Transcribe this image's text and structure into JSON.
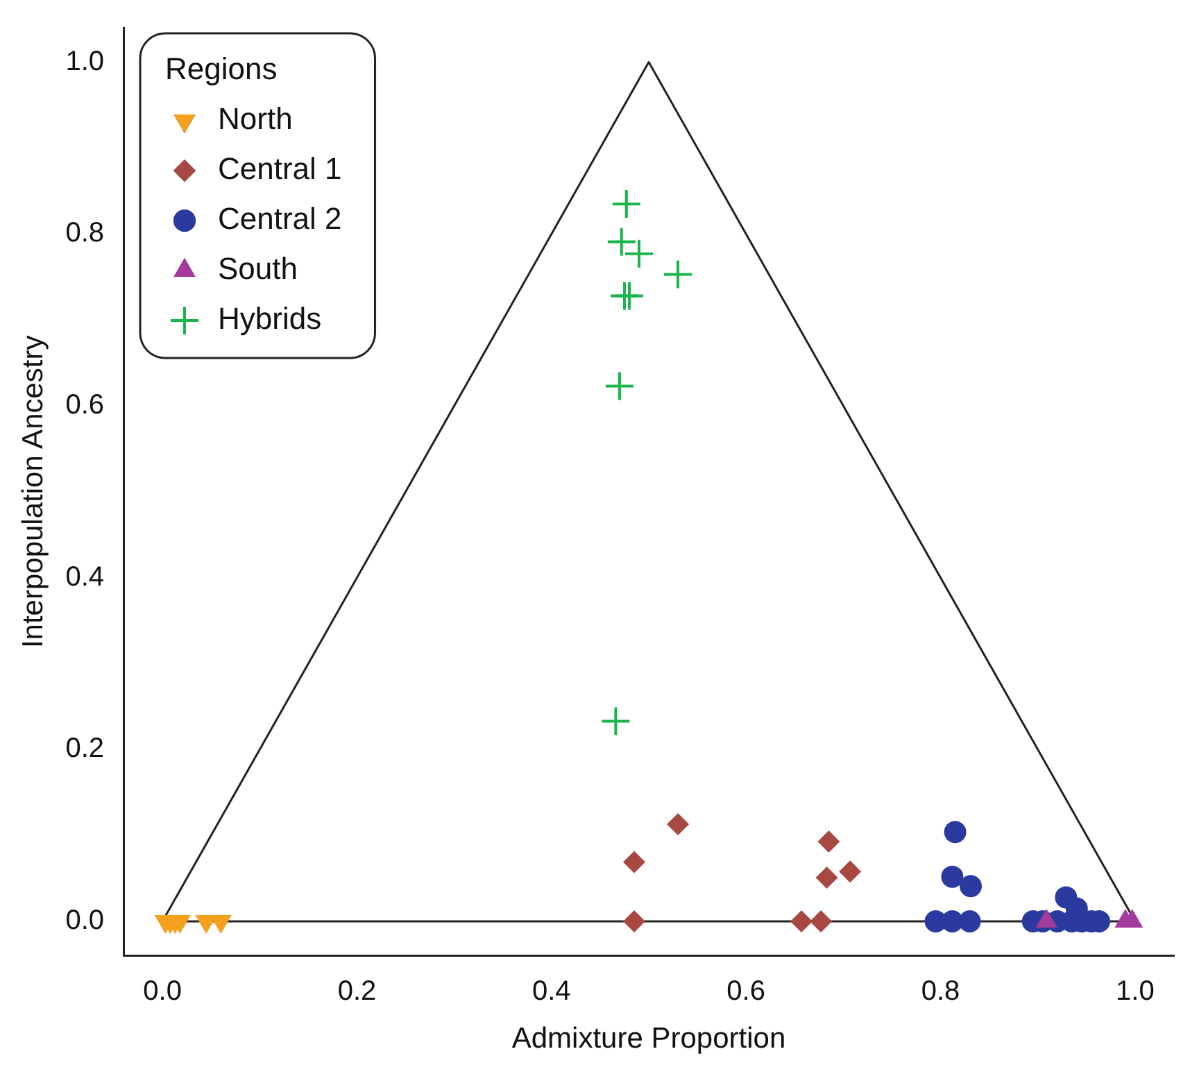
{
  "chart_data": {
    "type": "scatter",
    "xlabel": "Admixture Proportion",
    "ylabel": "Interpopulation Ancestry",
    "legend_title": "Regions",
    "legend": "top left",
    "grid": false,
    "xlim": [
      -0.04,
      1.04
    ],
    "ylim": [
      -0.04,
      1.04
    ],
    "xticks": [
      {
        "value": 0,
        "label": "0.0"
      },
      {
        "value": 0.2,
        "label": "0.2"
      },
      {
        "value": 0.4,
        "label": "0.4"
      },
      {
        "value": 0.6,
        "label": "0.6"
      },
      {
        "value": 0.8,
        "label": "0.8"
      },
      {
        "value": 1,
        "label": "1.0"
      }
    ],
    "yticks": [
      {
        "value": 0,
        "label": "0.0"
      },
      {
        "value": 0.2,
        "label": "0.2"
      },
      {
        "value": 0.4,
        "label": "0.4"
      },
      {
        "value": 0.6,
        "label": "0.6"
      },
      {
        "value": 0.8,
        "label": "0.8"
      },
      {
        "value": 1,
        "label": "1.0"
      }
    ],
    "series": [
      {
        "type": "line",
        "color": "#222222",
        "marker": "none",
        "line_style": "solid",
        "x": [
          0,
          0.5,
          1
        ],
        "values": [
          0,
          1,
          0
        ]
      },
      {
        "type": "line",
        "color": "#222222",
        "marker": "none",
        "line_style": "solid",
        "x": [
          0,
          1
        ],
        "values": [
          0,
          0
        ]
      },
      {
        "name": "North",
        "color": "#f5a01e",
        "marker": "triangle_down",
        "x": [
          0.003,
          0.008,
          0.013,
          0.018,
          0.045,
          0.06
        ],
        "values": [
          0,
          0,
          0,
          0,
          0,
          0
        ]
      },
      {
        "name": "Central 1",
        "color": "#a84842",
        "marker": "diamond",
        "x": [
          0.485,
          0.485,
          0.53,
          0.657,
          0.677,
          0.685,
          0.683,
          0.707
        ],
        "values": [
          0,
          0.069,
          0.113,
          0,
          0,
          0.093,
          0.051,
          0.058
        ]
      },
      {
        "name": "Central 2",
        "color": "#2a3a9e",
        "marker": "circle",
        "x": [
          0.815,
          0.812,
          0.831,
          0.795,
          0.812,
          0.83,
          0.895,
          0.905,
          0.92,
          0.935,
          0.945,
          0.955,
          0.963,
          0.929,
          0.94
        ],
        "values": [
          0.104,
          0.052,
          0.041,
          0,
          0,
          0,
          0,
          0,
          0,
          0,
          0,
          0,
          0,
          0.028,
          0.015
        ]
      },
      {
        "name": "South",
        "color": "#a33a9c",
        "marker": "triangle",
        "x": [
          0.909,
          0.99,
          0.997
        ],
        "values": [
          0,
          0,
          0
        ]
      },
      {
        "name": "Hybrids",
        "color": "#1ab54a",
        "marker": "cross",
        "x": [
          0.477,
          0.472,
          0.49,
          0.53,
          0.475,
          0.48,
          0.47,
          0.466
        ],
        "values": [
          0.835,
          0.791,
          0.777,
          0.753,
          0.728,
          0.728,
          0.623,
          0.233
        ]
      }
    ]
  }
}
